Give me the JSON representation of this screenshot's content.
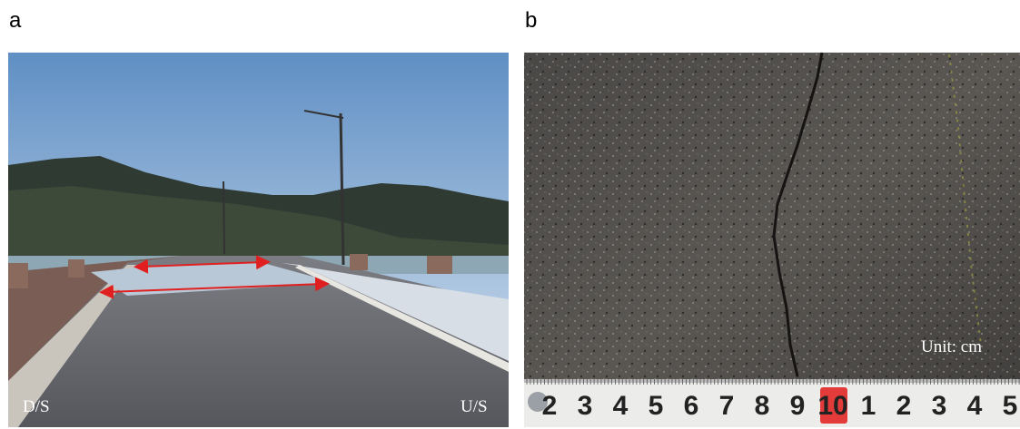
{
  "panels": [
    {
      "label": "a",
      "left_label": "D/S",
      "right_label": "U/S"
    },
    {
      "label": "b",
      "unit_label": "Unit: cm",
      "ruler": {
        "labels": [
          "2",
          "3",
          "4",
          "5",
          "6",
          "7",
          "8",
          "9",
          "10",
          "1",
          "2",
          "3",
          "4",
          "5"
        ]
      }
    }
  ]
}
